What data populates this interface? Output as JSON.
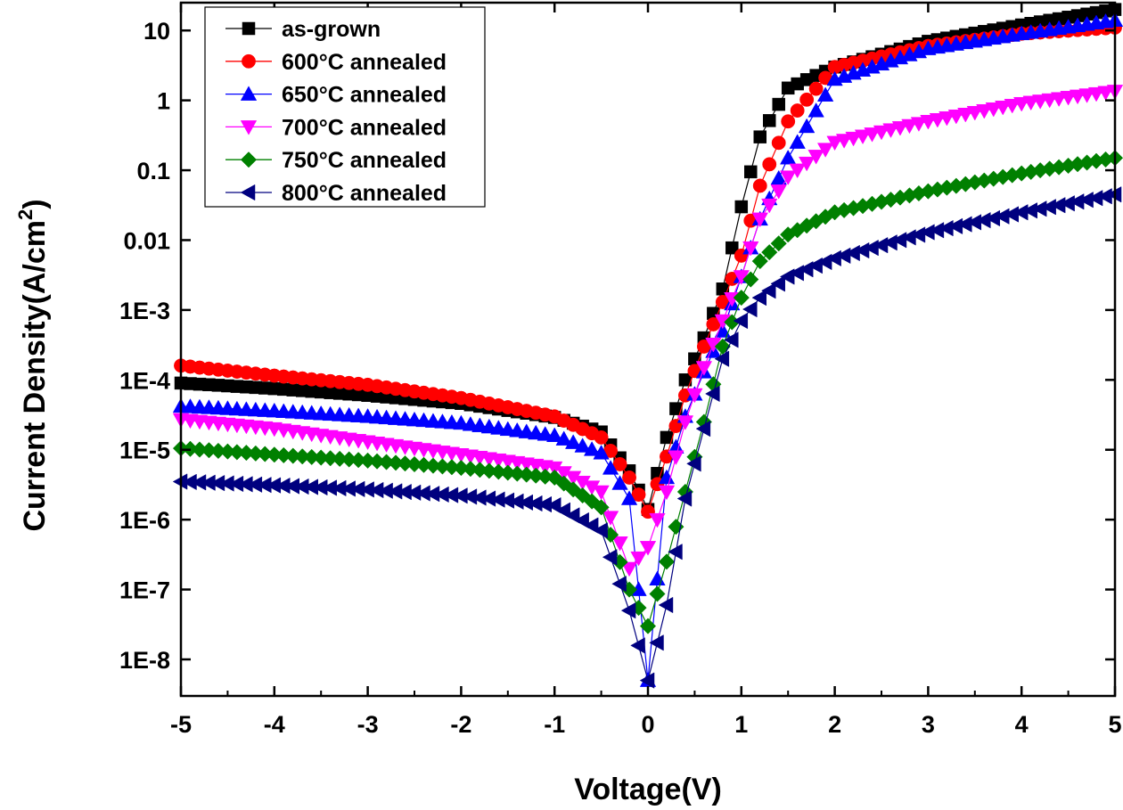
{
  "chart_data": {
    "type": "scatter",
    "xlabel": "Voltage(V)",
    "ylabel_main": "Current Density(A/cm",
    "ylabel_sup": "2",
    "ylabel_close": ")",
    "xlim": [
      -5,
      5
    ],
    "ylim": [
      3e-09,
      25
    ],
    "yscale": "log",
    "grid": false,
    "legend_position": "top-left",
    "x_ticks": [
      {
        "value": -5,
        "label": "-5"
      },
      {
        "value": -4,
        "label": "-4"
      },
      {
        "value": -3,
        "label": "-3"
      },
      {
        "value": -2,
        "label": "-2"
      },
      {
        "value": -1,
        "label": "-1"
      },
      {
        "value": 0,
        "label": "0"
      },
      {
        "value": 1,
        "label": "1"
      },
      {
        "value": 2,
        "label": "2"
      },
      {
        "value": 3,
        "label": "3"
      },
      {
        "value": 4,
        "label": "4"
      },
      {
        "value": 5,
        "label": "5"
      }
    ],
    "y_ticks": [
      {
        "value": 10,
        "label": "10"
      },
      {
        "value": 1,
        "label": "1"
      },
      {
        "value": 0.1,
        "label": "0.1"
      },
      {
        "value": 0.01,
        "label": "0.01"
      },
      {
        "value": 0.001,
        "label": "1E-3"
      },
      {
        "value": 0.0001,
        "label": "1E-4"
      },
      {
        "value": 1e-05,
        "label": "1E-5"
      },
      {
        "value": 1e-06,
        "label": "1E-6"
      },
      {
        "value": 1e-07,
        "label": "1E-7"
      },
      {
        "value": 1e-08,
        "label": "1E-8"
      }
    ],
    "series": [
      {
        "name": "as-grown",
        "color": "#000000",
        "marker": "square",
        "x": [
          -5,
          -4,
          -3,
          -2,
          -1,
          -0.5,
          -0.2,
          0,
          0.2,
          0.4,
          0.6,
          0.8,
          1,
          1.2,
          1.5,
          2,
          3,
          4,
          5
        ],
        "y": [
          9e-05,
          7.5e-05,
          6e-05,
          4.6e-05,
          2.9e-05,
          1.8e-05,
          5e-06,
          1.4e-06,
          1.5e-05,
          0.0001,
          0.0004,
          0.002,
          0.03,
          0.3,
          1.5,
          3,
          7,
          12,
          20
        ]
      },
      {
        "name": "600°C annealed",
        "color": "#ff0000",
        "marker": "circle",
        "x": [
          -5,
          -4,
          -3,
          -2,
          -1,
          -0.5,
          -0.2,
          0,
          0.2,
          0.4,
          0.6,
          0.8,
          1,
          1.2,
          1.5,
          2,
          3,
          4,
          5
        ],
        "y": [
          0.00016,
          0.000115,
          8.5e-05,
          5.5e-05,
          3e-05,
          1.5e-05,
          4e-06,
          1.3e-06,
          8e-06,
          6e-05,
          0.0003,
          0.0013,
          0.006,
          0.06,
          0.5,
          3,
          6,
          9,
          11
        ]
      },
      {
        "name": "650°C annealed",
        "color": "#0000ff",
        "marker": "triangle-up",
        "x": [
          -5,
          -4,
          -3,
          -2,
          -1,
          -0.5,
          -0.2,
          0,
          0.2,
          0.4,
          0.6,
          0.8,
          1,
          1.2,
          1.5,
          2,
          3,
          4,
          5
        ],
        "y": [
          4.2e-05,
          3.6e-05,
          3e-05,
          2.4e-05,
          1.6e-05,
          9e-06,
          2e-06,
          5e-09,
          4e-06,
          3e-05,
          0.00013,
          0.0005,
          0.003,
          0.02,
          0.15,
          2,
          5.5,
          9,
          14
        ]
      },
      {
        "name": "700°C annealed",
        "color": "#ff00ff",
        "marker": "triangle-down",
        "x": [
          -5,
          -4,
          -3,
          -2,
          -1,
          -0.5,
          -0.2,
          0,
          0.2,
          0.4,
          0.6,
          0.8,
          1,
          1.2,
          1.5,
          2,
          3,
          4,
          5
        ],
        "y": [
          2.7e-05,
          2e-05,
          1.3e-05,
          8.5e-06,
          5.5e-06,
          2.5e-06,
          2e-07,
          4e-07,
          2.5e-06,
          2.5e-05,
          0.00015,
          0.0007,
          0.003,
          0.02,
          0.08,
          0.25,
          0.5,
          0.9,
          1.35
        ]
      },
      {
        "name": "750°C annealed",
        "color": "#008000",
        "marker": "diamond",
        "x": [
          -5,
          -4,
          -3,
          -2,
          -1,
          -0.5,
          -0.2,
          0,
          0.2,
          0.4,
          0.6,
          0.8,
          1,
          1.2,
          1.5,
          2,
          3,
          4,
          5
        ],
        "y": [
          1.05e-05,
          8.5e-06,
          7e-06,
          5.5e-06,
          4e-06,
          1.5e-06,
          1e-07,
          3e-08,
          2.5e-07,
          2.5e-06,
          2.5e-05,
          0.0003,
          0.0015,
          0.005,
          0.012,
          0.025,
          0.05,
          0.09,
          0.15
        ]
      },
      {
        "name": "800°C annealed",
        "color": "#00007f",
        "marker": "triangle-left",
        "x": [
          -5,
          -4,
          -3,
          -2,
          -1,
          -0.5,
          -0.2,
          0,
          0.2,
          0.4,
          0.6,
          0.8,
          1,
          1.2,
          1.5,
          2,
          3,
          4,
          5
        ],
        "y": [
          3.5e-06,
          3.1e-06,
          2.7e-06,
          2.2e-06,
          1.6e-06,
          7e-07,
          5e-08,
          5e-09,
          6e-08,
          2e-06,
          2e-05,
          0.0002,
          0.0007,
          0.0015,
          0.003,
          0.0055,
          0.013,
          0.025,
          0.045
        ]
      }
    ]
  }
}
